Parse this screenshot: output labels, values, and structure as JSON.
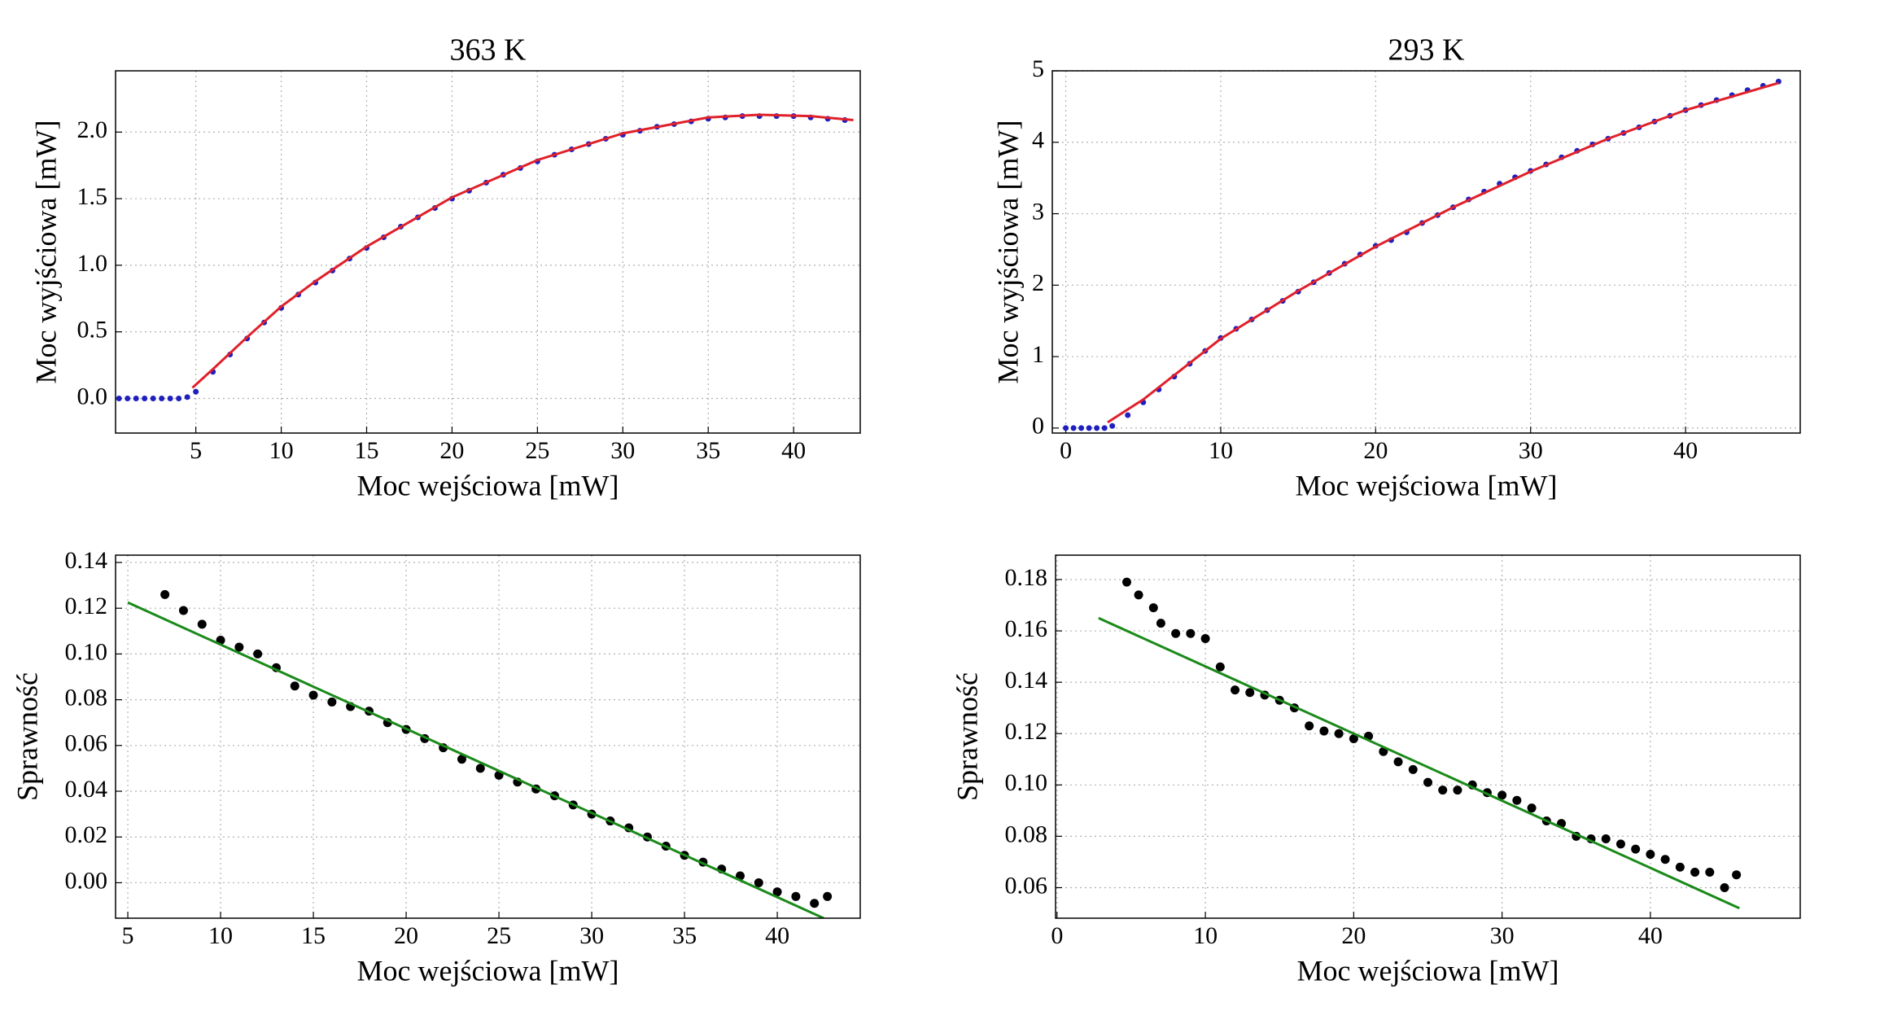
{
  "chart_data": [
    {
      "type": "scatter",
      "title": "363 K",
      "x_label": "Moc wejściowa [mW]",
      "y_label": "Moc wyjściowa [mW]",
      "xlim": [
        0.3,
        43.9
      ],
      "xticks": [
        5,
        10,
        15,
        20,
        25,
        30,
        35,
        40
      ],
      "ylim": [
        -0.26,
        2.46
      ],
      "yticks": [
        {
          "value": 0,
          "label": "0.0"
        },
        0.5,
        {
          "value": 1,
          "label": "1.0"
        },
        1.5,
        {
          "value": 2,
          "label": "2.0"
        }
      ],
      "grid": true,
      "series": [
        {
          "style": "markers",
          "color": "#1f1fbf",
          "x": [
            0.5,
            1,
            1.5,
            2,
            2.5,
            3,
            3.5,
            4,
            4.5,
            5,
            6,
            7,
            8,
            9,
            10,
            11,
            12,
            13,
            14,
            15,
            16,
            17,
            18,
            19,
            20,
            21,
            22,
            23,
            24,
            25,
            26,
            27,
            28,
            29,
            30,
            31,
            32,
            33,
            34,
            35,
            36,
            37,
            38,
            39,
            40,
            41,
            42,
            43
          ],
          "values": [
            0,
            0,
            0,
            0,
            0,
            0,
            0,
            0,
            0.01,
            0.05,
            0.2,
            0.33,
            0.45,
            0.57,
            0.68,
            0.78,
            0.87,
            0.96,
            1.05,
            1.13,
            1.21,
            1.29,
            1.36,
            1.43,
            1.5,
            1.56,
            1.62,
            1.68,
            1.73,
            1.78,
            1.83,
            1.87,
            1.91,
            1.95,
            1.98,
            2.01,
            2.04,
            2.06,
            2.08,
            2.1,
            2.11,
            2.12,
            2.12,
            2.12,
            2.12,
            2.11,
            2.1,
            2.09
          ]
        },
        {
          "style": "line",
          "color": "#e0202a",
          "x": [
            4.8,
            6,
            8,
            10,
            12,
            15,
            20,
            25,
            30,
            35,
            38,
            41,
            43.5
          ],
          "values": [
            0.08,
            0.22,
            0.46,
            0.69,
            0.88,
            1.14,
            1.51,
            1.79,
            1.99,
            2.11,
            2.13,
            2.12,
            2.09
          ]
        }
      ]
    },
    {
      "type": "scatter",
      "title": "293 K",
      "x_label": "Moc wejściowa [mW]",
      "y_label": "Moc wyjściowa [mW]",
      "xlim": [
        -0.87,
        47.4
      ],
      "xticks": [
        0,
        10,
        20,
        30,
        40
      ],
      "ylim": [
        -0.07,
        5
      ],
      "yticks": [
        0,
        1,
        2,
        3,
        4,
        5
      ],
      "grid": true,
      "series": [
        {
          "style": "markers",
          "color": "#1f1fbf",
          "x": [
            0,
            0.5,
            1,
            1.5,
            2,
            2.5,
            3,
            4,
            5,
            6,
            7,
            8,
            9,
            10,
            11,
            12,
            13,
            14,
            15,
            16,
            17,
            18,
            19,
            20,
            21,
            22,
            23,
            24,
            25,
            26,
            27,
            28,
            29,
            30,
            31,
            32,
            33,
            34,
            35,
            36,
            37,
            38,
            39,
            40,
            41,
            42,
            43,
            44,
            45,
            46
          ],
          "values": [
            0,
            0,
            0,
            0,
            0,
            0,
            0.03,
            0.18,
            0.36,
            0.54,
            0.72,
            0.9,
            1.08,
            1.26,
            1.39,
            1.52,
            1.65,
            1.78,
            1.91,
            2.04,
            2.17,
            2.3,
            2.43,
            2.55,
            2.63,
            2.74,
            2.87,
            2.98,
            3.09,
            3.2,
            3.31,
            3.42,
            3.51,
            3.6,
            3.69,
            3.79,
            3.88,
            3.97,
            4.05,
            4.13,
            4.21,
            4.29,
            4.37,
            4.45,
            4.52,
            4.59,
            4.66,
            4.73,
            4.79,
            4.85
          ]
        },
        {
          "style": "line",
          "color": "#e0202a",
          "x": [
            2.7,
            5,
            10,
            15,
            20,
            25,
            30,
            35,
            40,
            46
          ],
          "values": [
            0.08,
            0.4,
            1.25,
            1.92,
            2.54,
            3.09,
            3.59,
            4.05,
            4.45,
            4.83
          ]
        }
      ]
    },
    {
      "type": "scatter",
      "x_label": "Moc wejściowa [mW]",
      "y_label": "Sprawność",
      "xlim": [
        4.34,
        44.47
      ],
      "xticks": [
        5,
        10,
        15,
        20,
        25,
        30,
        35,
        40
      ],
      "ylim": [
        -0.0155,
        0.1432
      ],
      "yticks": [
        {
          "value": 0,
          "label": "0.00"
        },
        0.02,
        0.04,
        0.06,
        0.08,
        {
          "value": 0.1,
          "label": "0.10"
        },
        0.12,
        0.14
      ],
      "grid": true,
      "series": [
        {
          "style": "markers",
          "color": "#000000",
          "x": [
            7,
            8,
            9,
            10,
            11,
            12,
            13,
            14,
            15,
            16,
            17,
            18,
            19,
            20,
            21,
            22,
            23,
            24,
            25,
            26,
            27,
            28,
            29,
            30,
            31,
            32,
            33,
            34,
            35,
            36,
            37,
            38,
            39,
            40,
            41,
            42,
            42.7
          ],
          "values": [
            0.126,
            0.119,
            0.113,
            0.106,
            0.103,
            0.1,
            0.094,
            0.086,
            0.082,
            0.079,
            0.077,
            0.075,
            0.07,
            0.067,
            0.063,
            0.059,
            0.054,
            0.05,
            0.047,
            0.044,
            0.041,
            0.038,
            0.034,
            0.03,
            0.027,
            0.024,
            0.02,
            0.016,
            0.012,
            0.009,
            0.006,
            0.003,
            0,
            -0.004,
            -0.006,
            -0.009,
            -0.006
          ]
        },
        {
          "style": "line",
          "color": "#1a8a1a",
          "x": [
            5,
            42.5
          ],
          "values": [
            0.1225,
            -0.0155
          ]
        }
      ]
    },
    {
      "type": "scatter",
      "x_label": "Moc wejściowa [mW]",
      "y_label": "Sprawność",
      "xlim": [
        -0.1,
        50.1
      ],
      "xticks": [
        0,
        10,
        20,
        30,
        40
      ],
      "ylim": [
        0.0481,
        0.1895
      ],
      "yticks": [
        0.06,
        0.08,
        {
          "value": 0.1,
          "label": "0.10"
        },
        0.12,
        0.14,
        0.16,
        0.18
      ],
      "grid": true,
      "series": [
        {
          "style": "markers",
          "color": "#000000",
          "x": [
            4.7,
            5.5,
            6.5,
            7,
            8,
            9,
            10,
            11,
            12,
            13,
            14,
            15,
            16,
            17,
            18,
            19,
            20,
            21,
            22,
            23,
            24,
            25,
            26,
            27,
            28,
            29,
            30,
            31,
            32,
            33,
            34,
            35,
            36,
            37,
            38,
            39,
            40,
            41,
            42,
            43,
            44,
            45,
            45.8
          ],
          "values": [
            0.179,
            0.174,
            0.169,
            0.163,
            0.159,
            0.159,
            0.157,
            0.146,
            0.137,
            0.136,
            0.135,
            0.133,
            0.13,
            0.123,
            0.121,
            0.12,
            0.118,
            0.119,
            0.113,
            0.109,
            0.106,
            0.101,
            0.098,
            0.098,
            0.1,
            0.097,
            0.096,
            0.094,
            0.091,
            0.086,
            0.085,
            0.08,
            0.079,
            0.079,
            0.077,
            0.075,
            0.073,
            0.071,
            0.068,
            0.066,
            0.066,
            0.06,
            0.065
          ]
        },
        {
          "style": "line",
          "color": "#1a8a1a",
          "x": [
            2.8,
            46
          ],
          "values": [
            0.165,
            0.052
          ]
        }
      ]
    }
  ]
}
